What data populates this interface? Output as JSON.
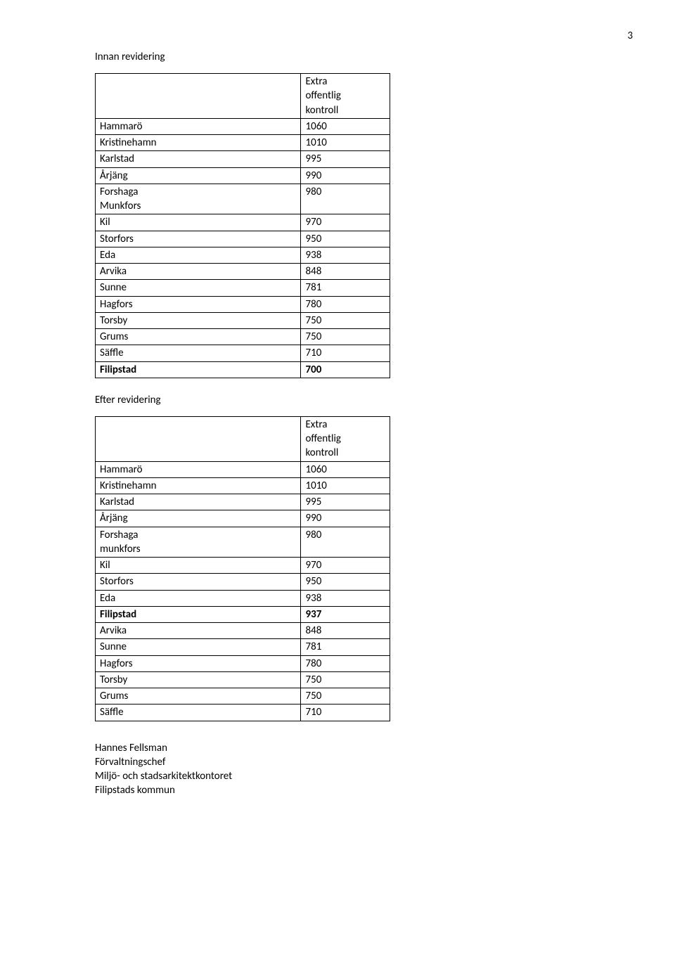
{
  "page_number": "3",
  "section1": {
    "title": "Innan revidering",
    "header_lines": [
      "Extra",
      "offentlig",
      "kontroll"
    ],
    "rows": [
      {
        "name": "Hammarö",
        "value": "1060",
        "bold": false
      },
      {
        "name": "Kristinehamn",
        "value": "1010",
        "bold": false
      },
      {
        "name": "Karlstad",
        "value": "995",
        "bold": false
      },
      {
        "name": "Årjäng",
        "value": "990",
        "bold": false
      },
      {
        "name": "Forshaga\nMunkfors",
        "value": "980",
        "bold": false
      },
      {
        "name": "Kil",
        "value": "970",
        "bold": false
      },
      {
        "name": "Storfors",
        "value": "950",
        "bold": false
      },
      {
        "name": "Eda",
        "value": "938",
        "bold": false
      },
      {
        "name": "Arvika",
        "value": "848",
        "bold": false
      },
      {
        "name": "Sunne",
        "value": "781",
        "bold": false
      },
      {
        "name": "Hagfors",
        "value": "780",
        "bold": false
      },
      {
        "name": "Torsby",
        "value": "750",
        "bold": false
      },
      {
        "name": "Grums",
        "value": "750",
        "bold": false
      },
      {
        "name": "Säffle",
        "value": "710",
        "bold": false
      },
      {
        "name": "Filipstad",
        "value": "700",
        "bold": true
      }
    ]
  },
  "section2": {
    "title": "Efter revidering",
    "header_lines": [
      "Extra",
      "offentlig",
      "kontroll"
    ],
    "rows": [
      {
        "name": "Hammarö",
        "value": "1060",
        "bold": false
      },
      {
        "name": "Kristinehamn",
        "value": "1010",
        "bold": false
      },
      {
        "name": "Karlstad",
        "value": "995",
        "bold": false
      },
      {
        "name": "Årjäng",
        "value": "990",
        "bold": false
      },
      {
        "name": "Forshaga\nmunkfors",
        "value": "980",
        "bold": false
      },
      {
        "name": "Kil",
        "value": "970",
        "bold": false
      },
      {
        "name": "Storfors",
        "value": "950",
        "bold": false
      },
      {
        "name": "Eda",
        "value": "938",
        "bold": false
      },
      {
        "name": "Filipstad",
        "value": "937",
        "bold": true
      },
      {
        "name": "Arvika",
        "value": "848",
        "bold": false
      },
      {
        "name": "Sunne",
        "value": "781",
        "bold": false
      },
      {
        "name": "Hagfors",
        "value": "780",
        "bold": false
      },
      {
        "name": "Torsby",
        "value": "750",
        "bold": false
      },
      {
        "name": "Grums",
        "value": "750",
        "bold": false
      },
      {
        "name": "Säffle",
        "value": "710",
        "bold": false
      }
    ]
  },
  "signoff": {
    "lines": [
      "Hannes Fellsman",
      "Förvaltningschef",
      "Miljö- och stadsarkitektkontoret",
      "Filipstads kommun"
    ]
  }
}
